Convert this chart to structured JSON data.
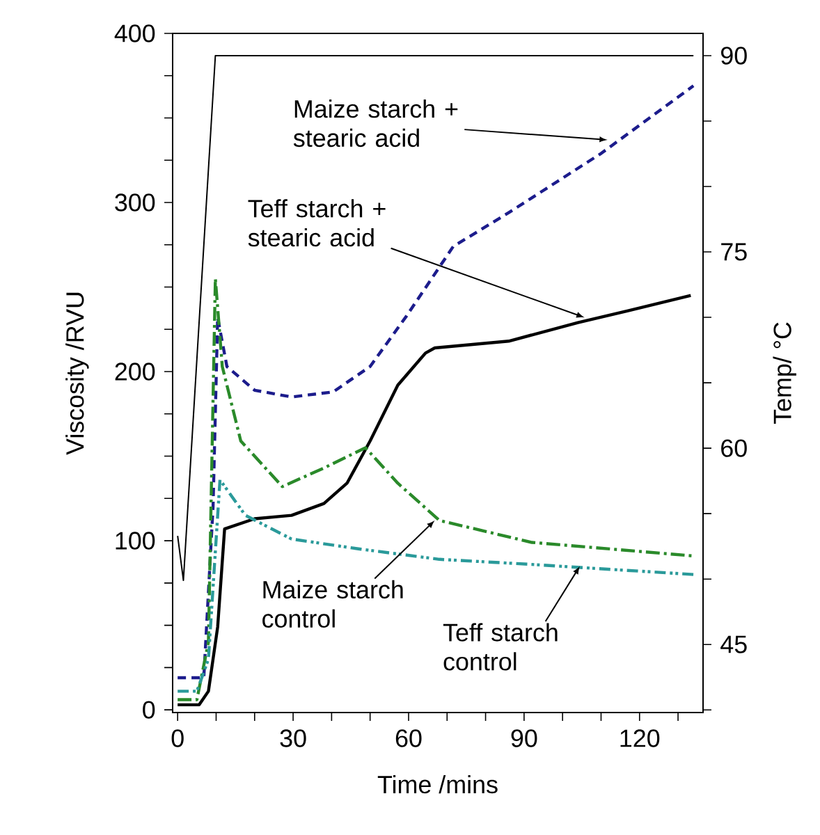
{
  "chart_data": {
    "type": "line",
    "xlabel": "Time /mins",
    "ylabel": "Viscosity /RVU",
    "y2label": "Temp/ °C",
    "xlim": [
      -1.3,
      136.5
    ],
    "ylim": [
      -1.6,
      400
    ],
    "y2lim": [
      39.8,
      91.7
    ],
    "xticks": [
      0,
      {
        "value": 10,
        "label": null
      },
      {
        "value": 20,
        "label": null
      },
      30,
      {
        "value": 40,
        "label": null
      },
      {
        "value": 50,
        "label": null
      },
      60,
      {
        "value": 70,
        "label": null
      },
      {
        "value": 80,
        "label": null
      },
      90,
      {
        "value": 100,
        "label": null
      },
      {
        "value": 110,
        "label": null
      },
      120,
      {
        "value": 130,
        "label": null
      }
    ],
    "yticks": [
      0,
      {
        "value": 25,
        "label": null
      },
      {
        "value": 50,
        "label": null
      },
      {
        "value": 75,
        "label": null
      },
      100,
      {
        "value": 125,
        "label": null
      },
      {
        "value": 150,
        "label": null
      },
      {
        "value": 175,
        "label": null
      },
      200,
      {
        "value": 225,
        "label": null
      },
      {
        "value": 250,
        "label": null
      },
      {
        "value": 275,
        "label": null
      },
      300,
      {
        "value": 325,
        "label": null
      },
      {
        "value": 350,
        "label": null
      },
      {
        "value": 375,
        "label": null
      },
      400
    ],
    "y2ticks": [
      {
        "value": 40,
        "label": null
      },
      45,
      {
        "value": 50,
        "label": null
      },
      {
        "value": 55,
        "label": null
      },
      60,
      {
        "value": 65,
        "label": null
      },
      {
        "value": 70,
        "label": null
      },
      75,
      {
        "value": 80,
        "label": null
      },
      {
        "value": 85,
        "label": null
      },
      90
    ],
    "series": [
      {
        "color": "#1c1c8c",
        "line_style": "dashed",
        "x": [
          0,
          6.8,
          9.2,
          10.4,
          12.8,
          20,
          29.6,
          40.4,
          50,
          59.5,
          71.6,
          86,
          110,
          134
        ],
        "values": [
          19,
          19,
          120,
          232,
          203,
          189,
          185,
          188,
          203,
          233,
          274,
          294,
          329,
          369
        ]
      },
      {
        "color": "#000000",
        "line_style": "solid",
        "x": [
          0,
          5.6,
          8.0,
          10.4,
          12.2,
          20,
          29.6,
          38,
          44,
          50,
          57.2,
          64.4,
          66.8,
          86,
          104,
          117,
          133.3
        ],
        "values": [
          3,
          3,
          11,
          49,
          107,
          113,
          115,
          122,
          134,
          159,
          192,
          211,
          214,
          218,
          229,
          236,
          245
        ]
      },
      {
        "color": "#2a8a2a",
        "line_style": "dashdot",
        "x": [
          0,
          5.0,
          8.0,
          9.8,
          11.6,
          16.4,
          27.2,
          38,
          48.8,
          57.2,
          68,
          92,
          134
        ],
        "values": [
          6,
          6,
          40,
          255,
          203,
          159,
          132,
          143,
          155,
          134,
          112,
          99,
          91
        ]
      },
      {
        "color": "#2a9a9a",
        "line_style": "dashdotdot",
        "x": [
          0,
          5.0,
          8.0,
          11,
          17.6,
          29.6,
          47.6,
          68,
          92,
          134
        ],
        "values": [
          11,
          11,
          30,
          136,
          115,
          101,
          95,
          89,
          86,
          80
        ]
      },
      {
        "color": "#000000",
        "line_style": "solid",
        "axis": "y2",
        "x": [
          0,
          1.5,
          9.8,
          134
        ],
        "values": [
          53.3,
          49.9,
          90,
          90
        ]
      }
    ],
    "annotations": [
      {
        "text": "Maize starch + stearic acid",
        "x": 111.7,
        "y": 337
      },
      {
        "text": "Teff starch + stearic acid",
        "x": 105.7,
        "y": 232
      },
      {
        "text": "Maize starch control",
        "x": 66.8,
        "y": 112
      },
      {
        "text": "Teff starch control",
        "x": 104.5,
        "y": 85
      }
    ]
  }
}
